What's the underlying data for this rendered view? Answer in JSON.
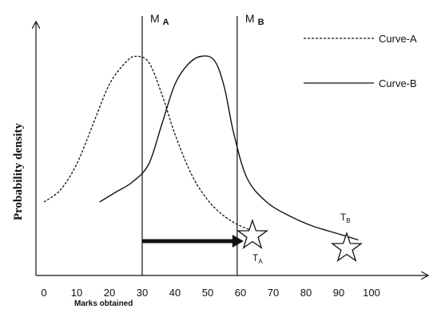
{
  "chart_data": {
    "type": "line",
    "title": "",
    "xlabel": "Marks obtained",
    "ylabel": "Probability density",
    "x_ticks": [
      "0",
      "10",
      "20",
      "30",
      "40",
      "50",
      "60",
      "70",
      "80",
      "90",
      "100"
    ],
    "xlim": [
      0,
      100
    ],
    "ylim": [
      0,
      1
    ],
    "grid": false,
    "legend_position": "top-right",
    "legend": [
      {
        "name": "Curve-A",
        "style": "dashed"
      },
      {
        "name": "Curve-B",
        "style": "solid"
      }
    ],
    "series": [
      {
        "name": "Curve-A",
        "style": "dashed",
        "x": [
          0,
          5,
          10,
          15,
          20,
          25,
          28,
          32,
          36,
          40,
          45,
          50,
          55,
          60,
          65
        ],
        "y": [
          0.26,
          0.32,
          0.45,
          0.65,
          0.85,
          0.96,
          0.99,
          0.96,
          0.8,
          0.6,
          0.4,
          0.27,
          0.19,
          0.14,
          0.11
        ]
      },
      {
        "name": "Curve-B",
        "style": "solid",
        "x": [
          17,
          22,
          27,
          32,
          36,
          40,
          44,
          48,
          52,
          55,
          58,
          62,
          68,
          75,
          82,
          90,
          96
        ],
        "y": [
          0.26,
          0.31,
          0.36,
          0.45,
          0.65,
          0.85,
          0.95,
          0.99,
          0.97,
          0.84,
          0.6,
          0.38,
          0.26,
          0.19,
          0.14,
          0.1,
          0.07
        ]
      }
    ],
    "vertical_lines": [
      {
        "x": 30,
        "label": "M",
        "subscript": "A"
      },
      {
        "x": 59,
        "label": "M",
        "subscript": "B"
      }
    ],
    "arrow": {
      "from_x": 30,
      "to_x": 59,
      "y": 0.1
    },
    "stars": [
      {
        "x": 64,
        "y": 0.1,
        "label": "T",
        "subscript": "A"
      },
      {
        "x": 95,
        "y": 0.03,
        "label": "T",
        "subscript": "B"
      }
    ],
    "colors": {
      "line": "#111111",
      "background": "#ffffff"
    }
  }
}
